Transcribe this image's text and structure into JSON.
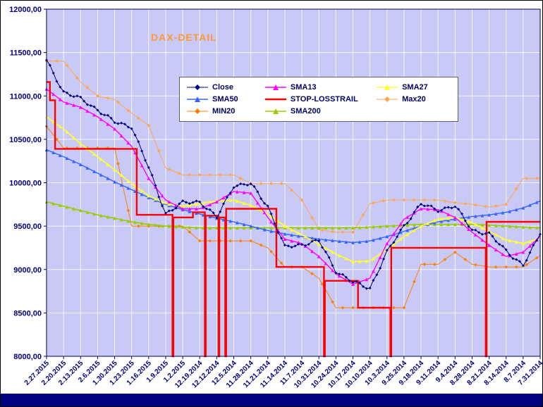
{
  "window": {
    "kind": "excel-style chart sheet"
  },
  "colors": {
    "chart_bg": "#ffffff",
    "plot_bg": "#c9c9f7",
    "grid": "#ffffff",
    "frame": "#000060",
    "axis_text": "#000080",
    "title_color": "#ff9933",
    "bottom_bar": "#000080",
    "legend_border": "#606060"
  },
  "chart_data": {
    "type": "line",
    "title": "DAX-DETAIL",
    "ylim": [
      8000,
      12000
    ],
    "y_tick_step": 500,
    "y_tick_labels": [
      "12000,00",
      "11500,00",
      "11000,00",
      "10500,00",
      "10000,00",
      "9500,00",
      "9000,00",
      "8500,00",
      "8000,00"
    ],
    "grid": "both",
    "legend_position": "inside-top-center",
    "x_labels": [
      "2.27.2015",
      "2.20.2015",
      "2.13.2015",
      "2.6.2015",
      "1.30.2015",
      "1.23.2015",
      "1.16.2015",
      "1.9.2015",
      "1.2.2015",
      "12.19.2014",
      "12.12.2014",
      "12.5.2014",
      "11.28.2014",
      "11.21.2014",
      "11.14.2014",
      "11.7.2014",
      "10.31.2014",
      "10.24.2014",
      "10.17.2014",
      "10.10.2014",
      "10.3.2014",
      "9.25.2014",
      "9.18.2014",
      "9.11.2014",
      "9.4.2014",
      "8.28.2014",
      "8.21.2014",
      "8.14.2014",
      "8.7.2014",
      "7.31.2014"
    ],
    "legend_order": [
      "Close",
      "SMA13",
      "SMA27",
      "SMA50",
      "STOP-LOSSTRAIL",
      "Max20",
      "MIN20",
      "SMA200"
    ],
    "series": [
      {
        "name": "Max20",
        "color": "#ffa64d",
        "marker": "diamond",
        "width": 1,
        "values": [
          11402,
          11400,
          11160,
          11000,
          10960,
          10800,
          10660,
          10170,
          10090,
          10090,
          10090,
          10090,
          9990,
          9990,
          9990,
          9800,
          9460,
          9430,
          9430,
          9760,
          9800,
          9800,
          9800,
          9800,
          9770,
          9750,
          9720,
          9750,
          10050,
          10050
        ]
      },
      {
        "name": "MIN20",
        "color": "#ff8000",
        "marker": "diamond",
        "width": 1,
        "values": [
          10650,
          10400,
          10400,
          10400,
          10400,
          9500,
          9500,
          9500,
          9500,
          9330,
          9330,
          9330,
          9330,
          9250,
          9030,
          9030,
          8900,
          8560,
          8560,
          8560,
          8560,
          8560,
          9060,
          9060,
          9200,
          9060,
          9030,
          9030,
          9030,
          9160
        ]
      },
      {
        "name": "SMA200",
        "color": "#99cc00",
        "marker": "triangle",
        "width": 1.6,
        "values": [
          9780,
          9730,
          9680,
          9630,
          9590,
          9550,
          9520,
          9500,
          9490,
          9480,
          9480,
          9480,
          9480,
          9480,
          9480,
          9480,
          9480,
          9480,
          9480,
          9490,
          9500,
          9510,
          9520,
          9520,
          9520,
          9520,
          9510,
          9500,
          9490,
          9480
        ]
      },
      {
        "name": "SMA50",
        "color": "#3366ff",
        "marker": "triangle",
        "width": 1.4,
        "values": [
          10380,
          10300,
          10210,
          10110,
          10010,
          9920,
          9830,
          9750,
          9690,
          9640,
          9590,
          9550,
          9500,
          9450,
          9410,
          9380,
          9350,
          9330,
          9310,
          9330,
          9380,
          9440,
          9500,
          9550,
          9580,
          9610,
          9630,
          9660,
          9710,
          9790
        ]
      },
      {
        "name": "SMA27",
        "color": "#ffff33",
        "marker": "triangle",
        "width": 1.6,
        "values": [
          10760,
          10620,
          10450,
          10300,
          10150,
          9990,
          9850,
          9760,
          9730,
          9760,
          9790,
          9800,
          9740,
          9640,
          9500,
          9400,
          9290,
          9180,
          9090,
          9100,
          9230,
          9380,
          9500,
          9580,
          9600,
          9540,
          9440,
          9340,
          9300,
          9360
        ]
      },
      {
        "name": "SMA13",
        "color": "#ff00ff",
        "marker": "triangle",
        "width": 1.4,
        "values": [
          11080,
          10930,
          10870,
          10760,
          10620,
          10420,
          10050,
          9800,
          9700,
          9700,
          9780,
          9900,
          9880,
          9600,
          9350,
          9300,
          9150,
          8950,
          8830,
          8900,
          9300,
          9580,
          9700,
          9690,
          9600,
          9430,
          9280,
          9150,
          9200,
          9380
        ]
      },
      {
        "name": "STOP-LOSSTRAIL",
        "color": "#ff0000",
        "marker": "none",
        "width": 2.4,
        "points": [
          {
            "x": 0,
            "v": 11160
          },
          {
            "x": 0.2,
            "v": 11160
          },
          {
            "x": 0.2,
            "v": 10950
          },
          {
            "x": 0.5,
            "v": 10950
          },
          {
            "x": 0.5,
            "v": 10390
          },
          {
            "x": 5.3,
            "v": 10390
          },
          {
            "x": 5.3,
            "v": 9630
          },
          {
            "x": 7.4,
            "v": 9630
          },
          {
            "x": 7.4,
            "v": 8000
          },
          {
            "x": 7.45,
            "v": 8000
          },
          {
            "x": 7.45,
            "v": 9600
          },
          {
            "x": 8.6,
            "v": 9600
          },
          {
            "x": 8.6,
            "v": 9660
          },
          {
            "x": 9.3,
            "v": 9660
          },
          {
            "x": 9.3,
            "v": 8000
          },
          {
            "x": 9.35,
            "v": 8000
          },
          {
            "x": 9.35,
            "v": 9620
          },
          {
            "x": 10.1,
            "v": 9620
          },
          {
            "x": 10.1,
            "v": 8000
          },
          {
            "x": 10.15,
            "v": 8000
          },
          {
            "x": 10.15,
            "v": 9600
          },
          {
            "x": 10.5,
            "v": 9600
          },
          {
            "x": 10.5,
            "v": 8000
          },
          {
            "x": 10.55,
            "v": 8000
          },
          {
            "x": 10.55,
            "v": 9700
          },
          {
            "x": 13.5,
            "v": 9700
          },
          {
            "x": 13.5,
            "v": 9030
          },
          {
            "x": 16.3,
            "v": 9030
          },
          {
            "x": 16.3,
            "v": 8000
          },
          {
            "x": 16.35,
            "v": 8000
          },
          {
            "x": 16.35,
            "v": 8870
          },
          {
            "x": 18.3,
            "v": 8870
          },
          {
            "x": 18.3,
            "v": 8560
          },
          {
            "x": 20.2,
            "v": 8560
          },
          {
            "x": 20.2,
            "v": 8000
          },
          {
            "x": 20.25,
            "v": 8000
          },
          {
            "x": 20.25,
            "v": 9250
          },
          {
            "x": 25.8,
            "v": 9250
          },
          {
            "x": 25.8,
            "v": 8000
          },
          {
            "x": 25.85,
            "v": 8000
          },
          {
            "x": 25.85,
            "v": 9550
          },
          {
            "x": 29,
            "v": 9550
          }
        ]
      },
      {
        "name": "Close",
        "color": "#000080",
        "marker": "diamond",
        "width": 1,
        "values": [
          11402,
          11050,
          10963,
          10846,
          10694,
          10650,
          10167,
          9648,
          9765,
          9787,
          9595,
          9971,
          9981,
          9733,
          9253,
          9292,
          9327,
          8988,
          8850,
          8789,
          9195,
          9510,
          9749,
          9691,
          9725,
          9462,
          9401,
          9225,
          9038,
          9407
        ]
      }
    ]
  }
}
